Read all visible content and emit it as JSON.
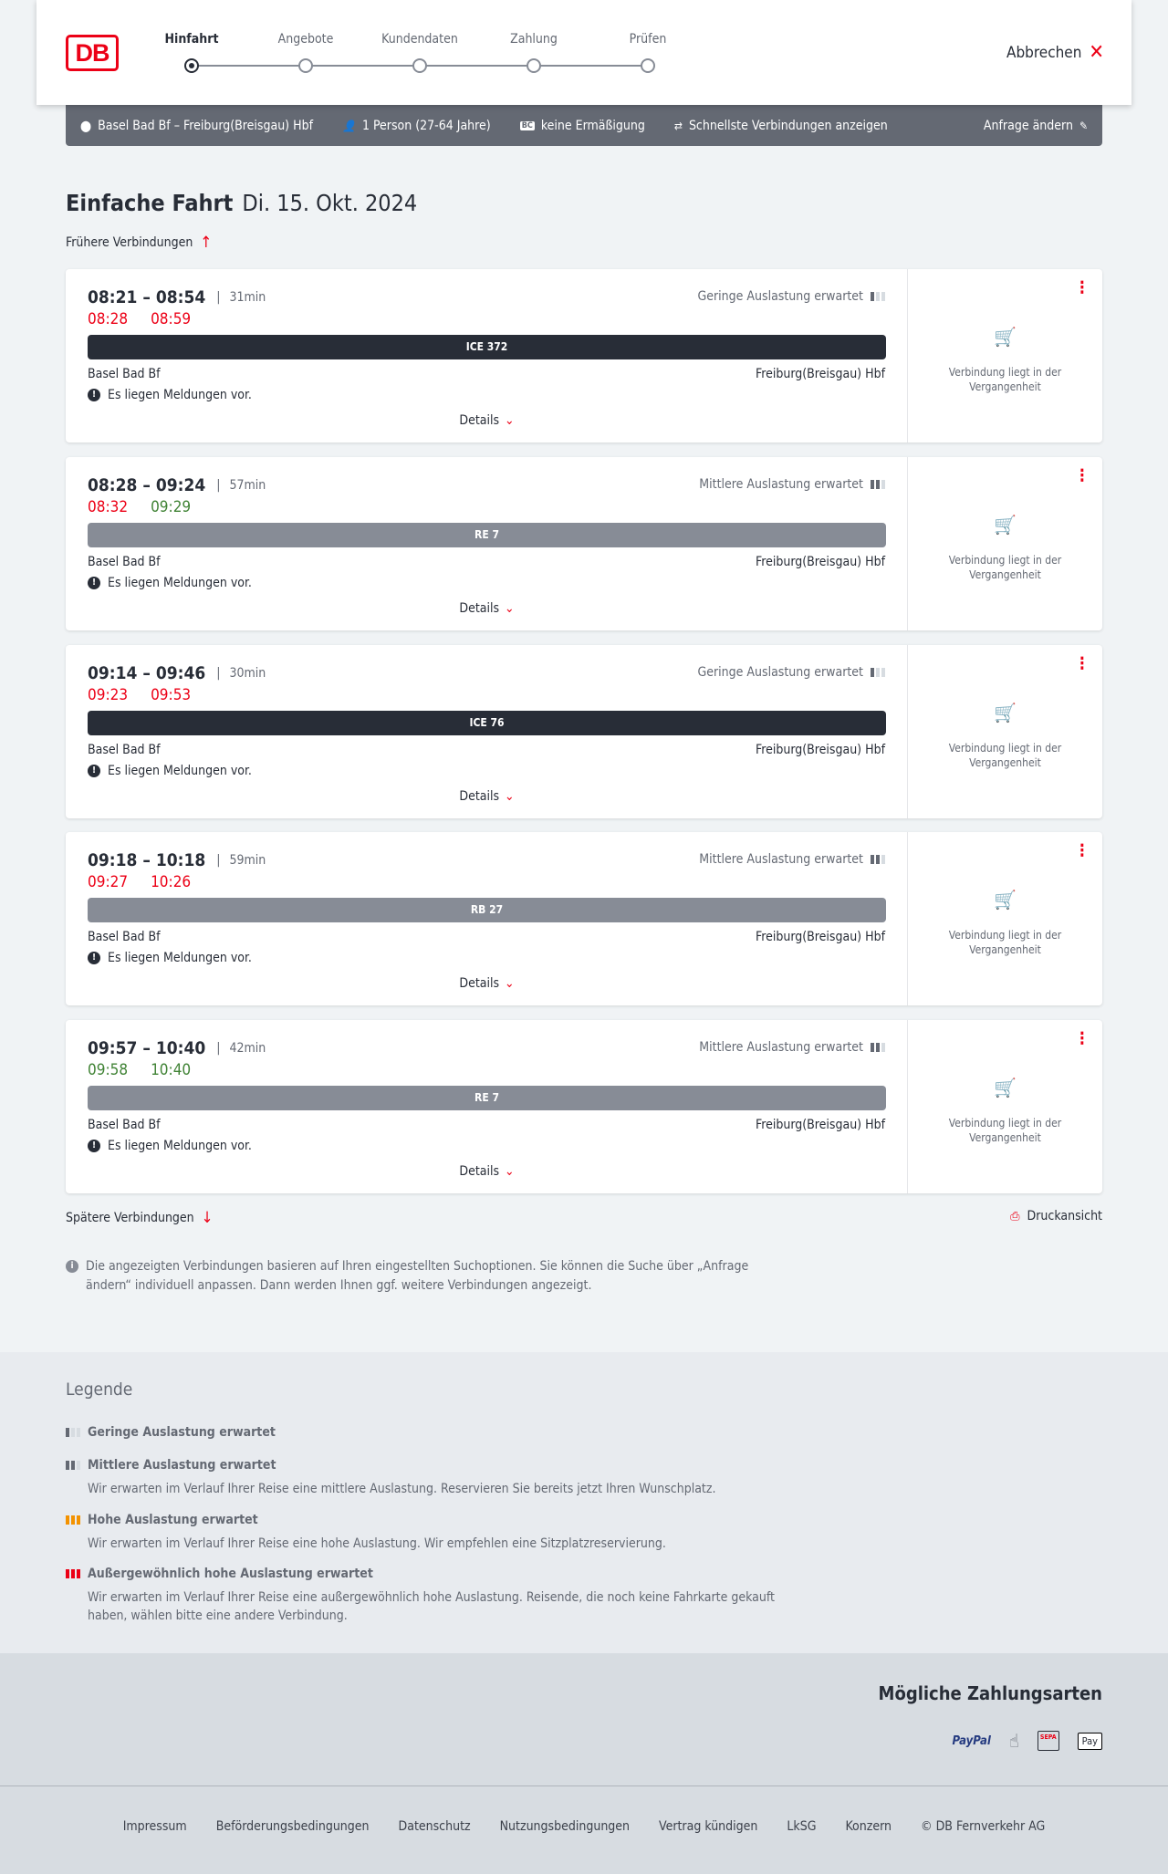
{
  "header": {
    "logo": "DB",
    "steps": [
      "Hinfahrt",
      "Angebote",
      "Kundendaten",
      "Zahlung",
      "Prüfen"
    ],
    "active_step": 0,
    "cancel": "Abbrechen"
  },
  "searchbar": {
    "route": "Basel Bad Bf – Freiburg(Breisgau) Hbf",
    "passengers": "1 Person (27-64 Jahre)",
    "discount_badge": "BC",
    "discount": "keine Ermäßigung",
    "fastest": "Schnellste Verbindungen anzeigen",
    "edit": "Anfrage ändern"
  },
  "title": {
    "type": "Einfache Fahrt",
    "date": "Di. 15. Okt. 2024"
  },
  "earlier": "Frühere Verbindungen",
  "later": "Spätere Verbindungen",
  "print": "Druckansicht",
  "colors": {
    "red": "#ec0016",
    "green": "#408335",
    "ice": "#282d37",
    "regional": "#878c96"
  },
  "connections": [
    {
      "times": "08:21 – 08:54",
      "duration": "31min",
      "rt_dep": "08:28",
      "rt_arr": "08:59",
      "rt_color": "red",
      "occupancy": "Geringe Auslastung erwartet",
      "occ_level": 1,
      "train": "ICE 372",
      "train_type": "ice",
      "from": "Basel Bad Bf",
      "to": "Freiburg(Breisgau) Hbf",
      "message": "Es liegen Meldungen vor.",
      "details": "Details",
      "status": "Verbindung liegt in der Vergangenheit"
    },
    {
      "times": "08:28 – 09:24",
      "duration": "57min",
      "rt_dep": "08:32",
      "rt_arr": "09:29",
      "rt_color": "mixed",
      "occupancy": "Mittlere Auslastung erwartet",
      "occ_level": 2,
      "train": "RE 7",
      "train_type": "regional",
      "from": "Basel Bad Bf",
      "to": "Freiburg(Breisgau) Hbf",
      "message": "Es liegen Meldungen vor.",
      "details": "Details",
      "status": "Verbindung liegt in der Vergangenheit"
    },
    {
      "times": "09:14 – 09:46",
      "duration": "30min",
      "rt_dep": "09:23",
      "rt_arr": "09:53",
      "rt_color": "red",
      "occupancy": "Geringe Auslastung erwartet",
      "occ_level": 1,
      "train": "ICE 76",
      "train_type": "ice",
      "from": "Basel Bad Bf",
      "to": "Freiburg(Breisgau) Hbf",
      "message": "Es liegen Meldungen vor.",
      "details": "Details",
      "status": "Verbindung liegt in der Vergangenheit"
    },
    {
      "times": "09:18 – 10:18",
      "duration": "59min",
      "rt_dep": "09:27",
      "rt_arr": "10:26",
      "rt_color": "red",
      "occupancy": "Mittlere Auslastung erwartet",
      "occ_level": 2,
      "train": "RB 27",
      "train_type": "regional",
      "from": "Basel Bad Bf",
      "to": "Freiburg(Breisgau) Hbf",
      "message": "Es liegen Meldungen vor.",
      "details": "Details",
      "status": "Verbindung liegt in der Vergangenheit"
    },
    {
      "times": "09:57 – 10:40",
      "duration": "42min",
      "rt_dep": "09:58",
      "rt_arr": "10:40",
      "rt_color": "green",
      "occupancy": "Mittlere Auslastung erwartet",
      "occ_level": 2,
      "train": "RE 7",
      "train_type": "regional",
      "from": "Basel Bad Bf",
      "to": "Freiburg(Breisgau) Hbf",
      "message": "Es liegen Meldungen vor.",
      "details": "Details",
      "status": "Verbindung liegt in der Vergangenheit"
    }
  ],
  "info": "Die angezeigten Verbindungen basieren auf Ihren eingestellten Suchoptionen. Sie können die Suche über „Anfrage ändern“ individuell anpassen. Dann werden Ihnen ggf. weitere Verbindungen angezeigt.",
  "legend": {
    "title": "Legende",
    "items": [
      {
        "label": "Geringe Auslastung erwartet",
        "text": ""
      },
      {
        "label": "Mittlere Auslastung erwartet",
        "text": "Wir erwarten im Verlauf Ihrer Reise eine mittlere Auslastung. Reservieren Sie bereits jetzt Ihren Wunschplatz."
      },
      {
        "label": "Hohe Auslastung erwartet",
        "text": "Wir erwarten im Verlauf Ihrer Reise eine hohe Auslastung. Wir empfehlen eine Sitzplatzreservierung."
      },
      {
        "label": "Außergewöhnlich hohe Auslastung erwartet",
        "text": "Wir erwarten im Verlauf Ihrer Reise eine außergewöhnlich hohe Auslastung. Reisende, die noch keine Fahrkarte gekauft haben, wählen bitte eine andere Verbindung."
      }
    ]
  },
  "payment": {
    "title": "Mögliche Zahlungsarten",
    "methods": [
      "PayPal",
      "Kreditkarte",
      "SEPA",
      "Pay"
    ]
  },
  "footer": [
    "Impressum",
    "Beförderungsbedingungen",
    "Datenschutz",
    "Nutzungsbedingungen",
    "Vertrag kündigen",
    "LkSG",
    "Konzern",
    "© DB Fernverkehr AG"
  ]
}
